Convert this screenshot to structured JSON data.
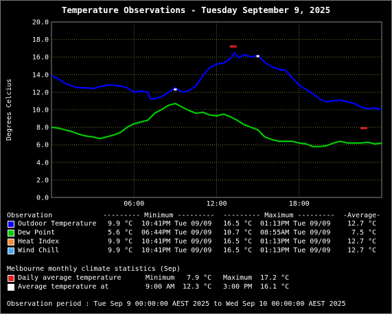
{
  "title": "Temperature Observations - Tuesday September 9, 2025",
  "chart_data": {
    "type": "line",
    "ylabel": "Degrees Celcius",
    "ylim": [
      0,
      20
    ],
    "yticks": [
      "0.0",
      "2.0",
      "4.0",
      "6.0",
      "8.0",
      "10.0",
      "12.0",
      "14.0",
      "16.0",
      "18.0",
      "20.0"
    ],
    "xlim_hours": [
      0,
      24
    ],
    "xticks": [
      {
        "h": 6,
        "label": "06:00"
      },
      {
        "h": 12,
        "label": "12:00"
      },
      {
        "h": 18,
        "label": "18:00"
      }
    ],
    "grid": true,
    "series": [
      {
        "name": "Outdoor Temperature",
        "color": "#0000ff",
        "points": [
          [
            0,
            13.9
          ],
          [
            0.5,
            13.5
          ],
          [
            1,
            13.0
          ],
          [
            1.5,
            12.7
          ],
          [
            2,
            12.5
          ],
          [
            2.5,
            12.5
          ],
          [
            3,
            12.4
          ],
          [
            3.5,
            12.6
          ],
          [
            4,
            12.8
          ],
          [
            4.5,
            12.8
          ],
          [
            5,
            12.7
          ],
          [
            5.5,
            12.5
          ],
          [
            6,
            12.0
          ],
          [
            6.5,
            12.1
          ],
          [
            7,
            12.0
          ],
          [
            7.2,
            11.2
          ],
          [
            7.6,
            11.3
          ],
          [
            8,
            11.5
          ],
          [
            8.5,
            12.0
          ],
          [
            9,
            12.5
          ],
          [
            9.5,
            12.0
          ],
          [
            10,
            12.2
          ],
          [
            10.5,
            12.7
          ],
          [
            11,
            13.9
          ],
          [
            11.5,
            14.8
          ],
          [
            12,
            15.2
          ],
          [
            12.5,
            15.3
          ],
          [
            13,
            15.8
          ],
          [
            13.3,
            16.5
          ],
          [
            13.6,
            15.9
          ],
          [
            14,
            16.3
          ],
          [
            14.5,
            16.0
          ],
          [
            15,
            16.2
          ],
          [
            15.5,
            15.4
          ],
          [
            16,
            14.9
          ],
          [
            16.5,
            14.6
          ],
          [
            17,
            14.5
          ],
          [
            17.5,
            13.6
          ],
          [
            18,
            12.8
          ],
          [
            18.5,
            12.3
          ],
          [
            19,
            11.8
          ],
          [
            19.5,
            11.2
          ],
          [
            20,
            10.9
          ],
          [
            20.5,
            11.0
          ],
          [
            21,
            11.1
          ],
          [
            21.5,
            10.9
          ],
          [
            22,
            10.7
          ],
          [
            22.5,
            10.3
          ],
          [
            23,
            10.1
          ],
          [
            23.5,
            10.2
          ],
          [
            24,
            10.0
          ]
        ]
      },
      {
        "name": "Dew Point",
        "color": "#00cc00",
        "points": [
          [
            0,
            8.0
          ],
          [
            0.5,
            7.9
          ],
          [
            1,
            7.7
          ],
          [
            1.5,
            7.5
          ],
          [
            2,
            7.2
          ],
          [
            2.5,
            7.0
          ],
          [
            3,
            6.9
          ],
          [
            3.5,
            6.7
          ],
          [
            4,
            6.9
          ],
          [
            4.5,
            7.1
          ],
          [
            5,
            7.4
          ],
          [
            5.5,
            8.0
          ],
          [
            6,
            8.4
          ],
          [
            6.5,
            8.6
          ],
          [
            7,
            8.8
          ],
          [
            7.5,
            9.6
          ],
          [
            8,
            10.0
          ],
          [
            8.5,
            10.5
          ],
          [
            9,
            10.7
          ],
          [
            9.5,
            10.3
          ],
          [
            10,
            9.9
          ],
          [
            10.5,
            9.6
          ],
          [
            11,
            9.7
          ],
          [
            11.5,
            9.4
          ],
          [
            12,
            9.3
          ],
          [
            12.5,
            9.5
          ],
          [
            13,
            9.2
          ],
          [
            13.5,
            8.8
          ],
          [
            14,
            8.3
          ],
          [
            14.5,
            8.0
          ],
          [
            15,
            7.7
          ],
          [
            15.5,
            6.9
          ],
          [
            16,
            6.6
          ],
          [
            16.5,
            6.4
          ],
          [
            17,
            6.4
          ],
          [
            17.5,
            6.4
          ],
          [
            18,
            6.2
          ],
          [
            18.5,
            6.1
          ],
          [
            19,
            5.8
          ],
          [
            19.5,
            5.8
          ],
          [
            20,
            5.9
          ],
          [
            20.5,
            6.2
          ],
          [
            21,
            6.4
          ],
          [
            21.5,
            6.2
          ],
          [
            22,
            6.2
          ],
          [
            22.5,
            6.2
          ],
          [
            23,
            6.3
          ],
          [
            23.5,
            6.1
          ],
          [
            24,
            6.2
          ]
        ]
      }
    ],
    "markers": [
      {
        "name": "Daily average temperature (max)",
        "color": "#dd2222",
        "h": 13.2,
        "value": 17.2
      },
      {
        "name": "Daily average temperature (min)",
        "color": "#dd2222",
        "h": 22.7,
        "value": 7.9
      },
      {
        "name": "Average temperature at 9:00 AM",
        "color": "#ffffff",
        "h": 9.0,
        "value": 12.3
      },
      {
        "name": "Average temperature at 3:00 PM",
        "color": "#ffffff",
        "h": 15.0,
        "value": 16.1
      }
    ]
  },
  "legend": {
    "header": [
      "Observation",
      "--------- Minimum ---------",
      "--------- Maximum ---------",
      "-Average-"
    ],
    "rows": [
      {
        "color": "#0000ff",
        "label": "Outdoor Temperature",
        "min": "9.9 °C",
        "min_time": "10:41PM Tue 09/09",
        "max": "16.5 °C",
        "max_time": "01:13PM Tue 09/09",
        "avg": "12.7 °C"
      },
      {
        "color": "#00cc00",
        "label": "Dew Point",
        "min": "5.6 °C",
        "min_time": "06:44PM Tue 09/09",
        "max": "10.7 °C",
        "max_time": "08:55AM Tue 09/09",
        "avg": "7.5 °C"
      },
      {
        "color": "#ff8833",
        "label": "Heat Index",
        "min": "9.9 °C",
        "min_time": "10:41PM Tue 09/09",
        "max": "16.5 °C",
        "max_time": "01:13PM Tue 09/09",
        "avg": "12.7 °C"
      },
      {
        "color": "#44aaff",
        "label": "Wind Chill",
        "min": "9.9 °C",
        "min_time": "10:41PM Tue 09/09",
        "max": "16.5 °C",
        "max_time": "01:13PM Tue 09/09",
        "avg": "12.7 °C"
      }
    ]
  },
  "climate": {
    "header": "Melbourne monthly climate statistics (Sep)",
    "daily": {
      "color": "#dd2222",
      "label": "Daily average temperature",
      "min_label": "Minimum",
      "min": "7.9 °C",
      "max_label": "Maximum",
      "max": "17.2 °C"
    },
    "avg": {
      "color": "#ffffff",
      "label": "Average temperature at",
      "t1": "9:00 AM",
      "v1": "12.3 °C",
      "t2": "3:00 PM",
      "v2": "16.1 °C"
    }
  },
  "period": "Observation period : Tue Sep 9 00:00:00 AEST 2025 to Wed Sep 10 00:00:00 AEST 2025"
}
